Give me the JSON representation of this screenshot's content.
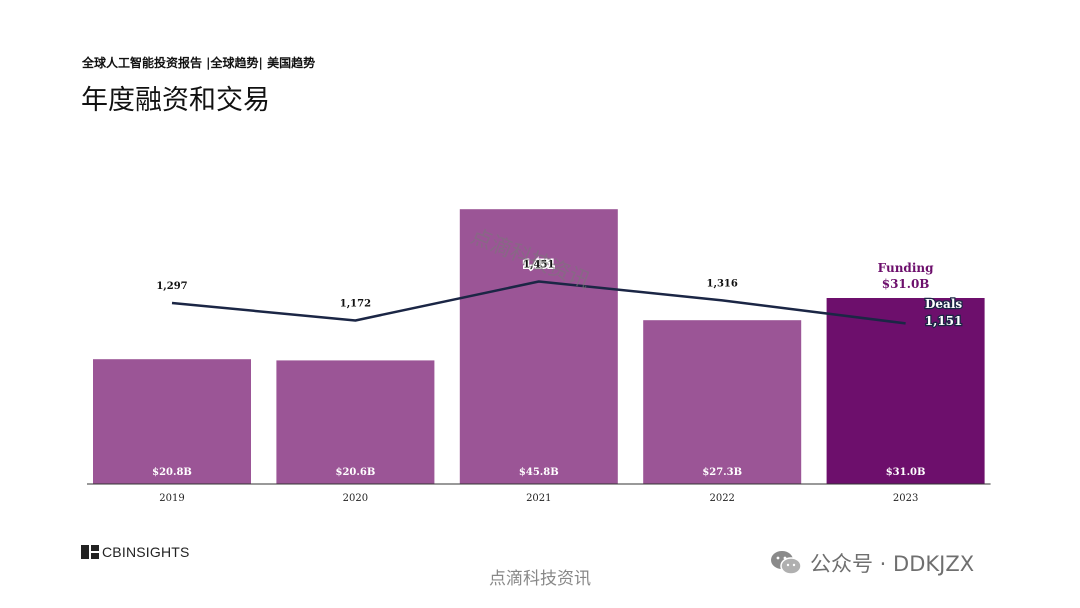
{
  "header": {
    "subtitle": "全球人工智能投资报告 |全球趋势| 美国趋势",
    "title": "年度融资和交易"
  },
  "colors": {
    "bar": "#9b5596",
    "bar_highlight": "#6d0f6c",
    "line": "#1b2645",
    "axis": "#333333"
  },
  "chart_data": {
    "type": "bar",
    "title": "年度融资和交易",
    "categories": [
      "2019",
      "2020",
      "2021",
      "2022",
      "2023"
    ],
    "series": [
      {
        "name": "Funding",
        "unit": "$B",
        "values": [
          20.8,
          20.6,
          45.8,
          27.3,
          31.0
        ],
        "labels": [
          "$20.8B",
          "$20.6B",
          "$45.8B",
          "$27.3B",
          "$31.0B"
        ]
      },
      {
        "name": "Deals",
        "type": "line",
        "values": [
          1297,
          1172,
          1451,
          1316,
          1151
        ],
        "labels": [
          "1,297",
          "1,172",
          "1,451",
          "1,316",
          "1,151"
        ]
      }
    ],
    "legend": {
      "funding_label": "Funding",
      "funding_value": "$31.0B",
      "deals_label": "Deals",
      "deals_value": "1,151"
    },
    "bar_ylim": [
      0,
      50
    ],
    "line_ylim": [
      0,
      2150
    ],
    "highlight_index": 4
  },
  "footer": {
    "logo_text": "CBINSIGHTS",
    "source": "点滴科技资讯",
    "wechat": "公众号 · DDKJZX",
    "watermark": "点滴科技资讯"
  }
}
